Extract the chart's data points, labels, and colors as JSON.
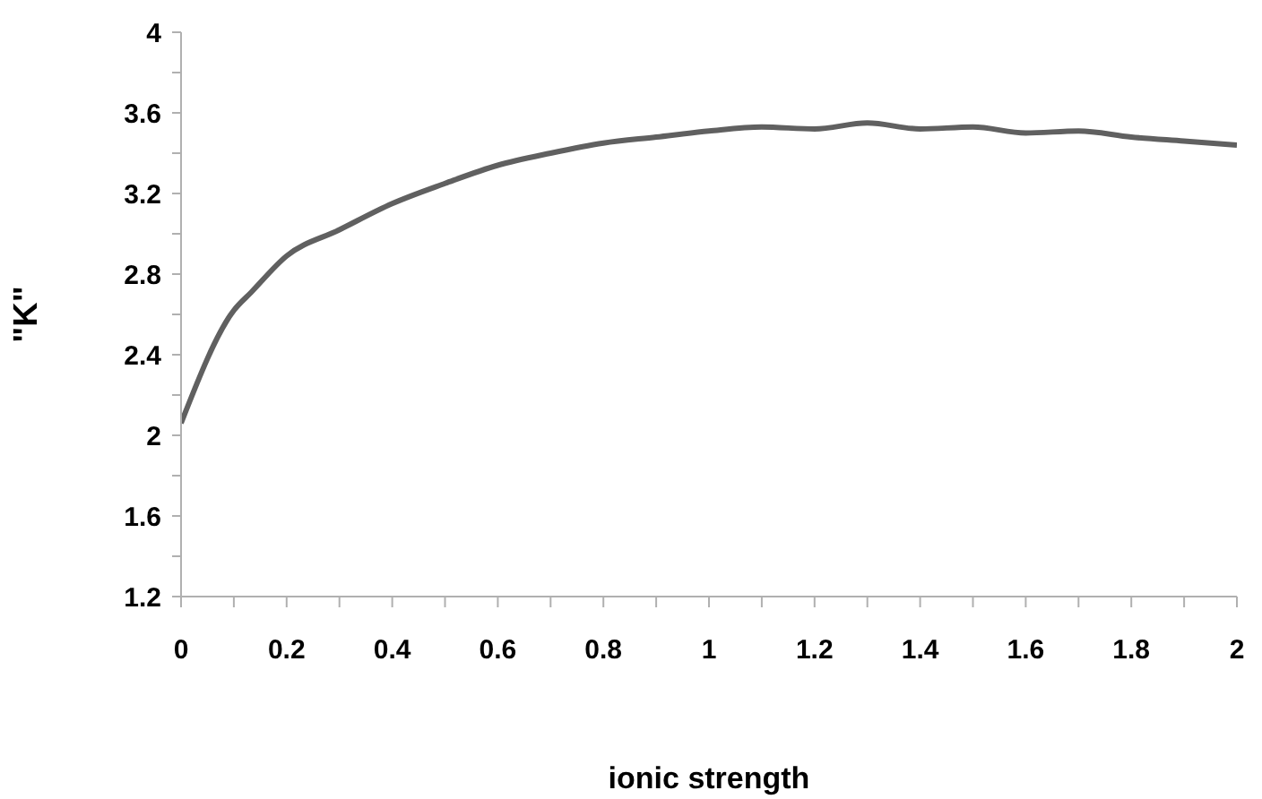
{
  "chart_data": {
    "type": "line",
    "xlabel": "ionic strength",
    "ylabel": "\"K\"",
    "color": "#606060",
    "x": [
      0,
      0.1,
      0.133,
      0.2,
      0.3,
      0.4,
      0.5,
      0.6,
      0.7,
      0.8,
      0.9,
      1.0,
      1.1,
      1.2,
      1.3,
      1.4,
      1.5,
      1.6,
      1.7,
      1.8,
      1.9,
      2.0
    ],
    "values": [
      2.06,
      2.62,
      2.71,
      2.89,
      3.02,
      3.15,
      3.25,
      3.34,
      3.4,
      3.45,
      3.48,
      3.51,
      3.53,
      3.52,
      3.55,
      3.52,
      3.53,
      3.5,
      3.51,
      3.48,
      3.46,
      3.44
    ],
    "xlim": [
      0,
      2
    ],
    "xticks": [
      0,
      {
        "value": 0.1,
        "label": null
      },
      0.2,
      {
        "value": 0.3,
        "label": null
      },
      0.4,
      {
        "value": 0.5,
        "label": null
      },
      0.6,
      {
        "value": 0.7,
        "label": null
      },
      0.8,
      {
        "value": 0.9,
        "label": null
      },
      1,
      {
        "value": 1.1,
        "label": null
      },
      1.2,
      {
        "value": 1.3,
        "label": null
      },
      1.4,
      {
        "value": 1.5,
        "label": null
      },
      1.6,
      {
        "value": 1.7,
        "label": null
      },
      1.8,
      {
        "value": 1.9,
        "label": null
      },
      2
    ],
    "ylim": [
      1.2,
      4
    ],
    "yticks": [
      1.2,
      {
        "value": 1.4,
        "label": null
      },
      1.6,
      {
        "value": 1.8,
        "label": null
      },
      2,
      {
        "value": 2.2,
        "label": null
      },
      2.4,
      {
        "value": 2.6,
        "label": null
      },
      2.8,
      {
        "value": 3.0,
        "label": null
      },
      3.2,
      {
        "value": 3.4,
        "label": null
      },
      3.6,
      {
        "value": 3.8,
        "label": null
      },
      4
    ]
  }
}
